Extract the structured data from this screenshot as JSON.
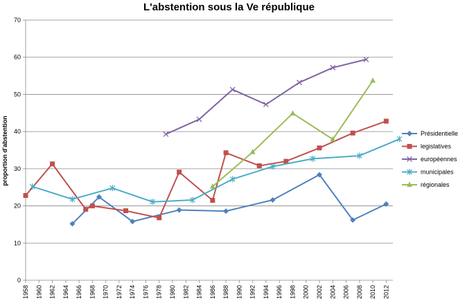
{
  "chart_data": {
    "type": "line",
    "title": "L'abstention sous la Ve république",
    "xlabel": "",
    "ylabel": "proportion d'abstention",
    "ylim": [
      0,
      70
    ],
    "yticks": [
      0,
      10,
      20,
      30,
      40,
      50,
      60,
      70
    ],
    "xlim": [
      1958,
      2013
    ],
    "xticks": [
      1958,
      1960,
      1962,
      1964,
      1966,
      1968,
      1970,
      1972,
      1974,
      1976,
      1978,
      1980,
      1982,
      1984,
      1986,
      1988,
      1990,
      1992,
      1994,
      1996,
      1998,
      2000,
      2002,
      2004,
      2006,
      2008,
      2010,
      2012
    ],
    "grid": "horizontal",
    "legend": "right",
    "series": [
      {
        "name": "Présidentielles",
        "color": "#4f81bd",
        "marker": "diamond",
        "points": [
          [
            1965,
            15.2
          ],
          [
            1969,
            22.4
          ],
          [
            1974,
            15.8
          ],
          [
            1981,
            18.9
          ],
          [
            1988,
            18.6
          ],
          [
            1995,
            21.6
          ],
          [
            2002,
            28.4
          ],
          [
            2007,
            16.2
          ],
          [
            2012,
            20.5
          ]
        ]
      },
      {
        "name": "legislatives",
        "color": "#c0504d",
        "marker": "square",
        "points": [
          [
            1958,
            22.8
          ],
          [
            1962,
            31.3
          ],
          [
            1967,
            19.1
          ],
          [
            1968,
            20.0
          ],
          [
            1973,
            18.7
          ],
          [
            1978,
            16.8
          ],
          [
            1981,
            29.1
          ],
          [
            1986,
            21.5
          ],
          [
            1988,
            34.3
          ],
          [
            1993,
            30.8
          ],
          [
            1997,
            32.0
          ],
          [
            2002,
            35.6
          ],
          [
            2007,
            39.6
          ],
          [
            2012,
            42.8
          ]
        ]
      },
      {
        "name": "européennes",
        "color": "#8064a2",
        "marker": "cross",
        "points": [
          [
            1979,
            39.3
          ],
          [
            1984,
            43.3
          ],
          [
            1989,
            51.3
          ],
          [
            1994,
            47.3
          ],
          [
            1999,
            53.2
          ],
          [
            2004,
            57.2
          ],
          [
            2009,
            59.4
          ]
        ]
      },
      {
        "name": "municipales",
        "color": "#4bacc6",
        "marker": "star",
        "points": [
          [
            1959,
            25.2
          ],
          [
            1965,
            21.8
          ],
          [
            1971,
            24.8
          ],
          [
            1977,
            21.1
          ],
          [
            1983,
            21.6
          ],
          [
            1989,
            27.2
          ],
          [
            1995,
            30.6
          ],
          [
            2001,
            32.7
          ],
          [
            2008,
            33.5
          ],
          [
            2014,
            38.0
          ]
        ]
      },
      {
        "name": "régionales",
        "color": "#9bbb59",
        "marker": "triangle",
        "points": [
          [
            1986,
            25.2
          ],
          [
            1992,
            34.5
          ],
          [
            1998,
            44.9
          ],
          [
            2004,
            37.9
          ],
          [
            2010,
            53.7
          ]
        ]
      }
    ]
  }
}
